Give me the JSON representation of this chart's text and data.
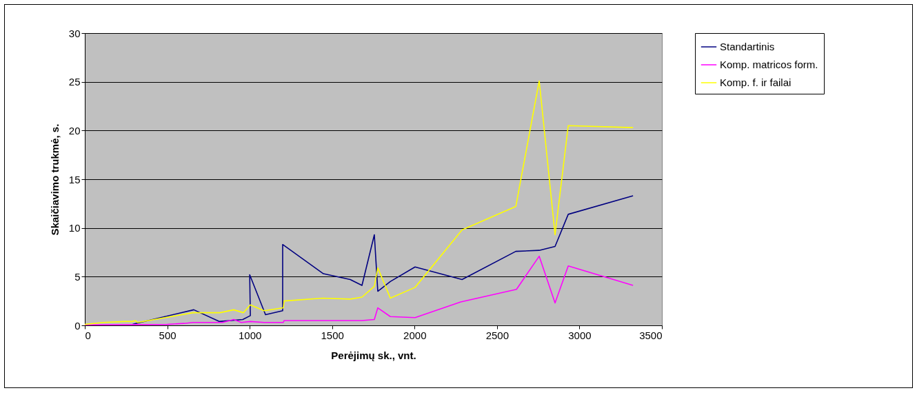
{
  "chart_data": {
    "type": "line",
    "xlabel": "Perėjimų sk., vnt.",
    "ylabel": "Skaičiavimo trukmė, s.",
    "xlim": [
      0,
      3500
    ],
    "xticks": [
      0,
      500,
      1000,
      1500,
      2000,
      2500,
      3000,
      3500
    ],
    "ylim": [
      0,
      30
    ],
    "yticks": [
      0,
      5,
      10,
      15,
      20,
      25,
      30
    ],
    "grid": "y",
    "legend": "right",
    "marker": "none",
    "line_style": "solid",
    "series": [
      {
        "name": "Standartinis",
        "color": "#000080",
        "x": [
          290,
          310,
          661,
          815,
          958,
          1004,
          1000,
          1096,
          1200,
          1200,
          1447,
          1610,
          1681,
          1756,
          1777,
          1853,
          2003,
          2288,
          2614,
          2756,
          2852,
          2932,
          3325
        ],
        "values": [
          0.1,
          0.2,
          1.6,
          0.4,
          0.6,
          1.0,
          5.2,
          1.1,
          1.5,
          8.3,
          5.3,
          4.7,
          4.1,
          9.3,
          3.5,
          4.5,
          6.0,
          4.7,
          7.6,
          7.7,
          8.1,
          11.4,
          13.3
        ]
      },
      {
        "name": "Komp. matricos form.",
        "color": "#ff00ff",
        "x": [
          0,
          500,
          602,
          657,
          836,
          903,
          949,
          1004,
          1087,
          1204,
          1209,
          1681,
          1756,
          1777,
          1853,
          2003,
          2280,
          2618,
          2756,
          2852,
          2932,
          3325
        ],
        "values": [
          0.05,
          0.1,
          0.2,
          0.3,
          0.3,
          0.6,
          0.3,
          0.4,
          0.3,
          0.3,
          0.5,
          0.5,
          0.6,
          1.8,
          0.9,
          0.8,
          2.4,
          3.7,
          7.1,
          2.3,
          6.1,
          4.1
        ]
      },
      {
        "name": "Komp. f. ir failai",
        "color": "#ffff00",
        "x": [
          0,
          113,
          240,
          290,
          305,
          320,
          657,
          820,
          903,
          962,
          1004,
          1087,
          1204,
          1209,
          1443,
          1610,
          1681,
          1756,
          1777,
          1853,
          2003,
          2288,
          2614,
          2756,
          2852,
          2932,
          3325
        ],
        "values": [
          0.1,
          0.3,
          0.4,
          0.4,
          0.5,
          0.3,
          1.3,
          1.3,
          1.6,
          1.3,
          2.1,
          1.5,
          1.8,
          2.5,
          2.8,
          2.7,
          2.9,
          4.0,
          5.9,
          2.8,
          3.9,
          9.8,
          12.2,
          25.1,
          9.3,
          20.5,
          20.3
        ]
      }
    ]
  }
}
